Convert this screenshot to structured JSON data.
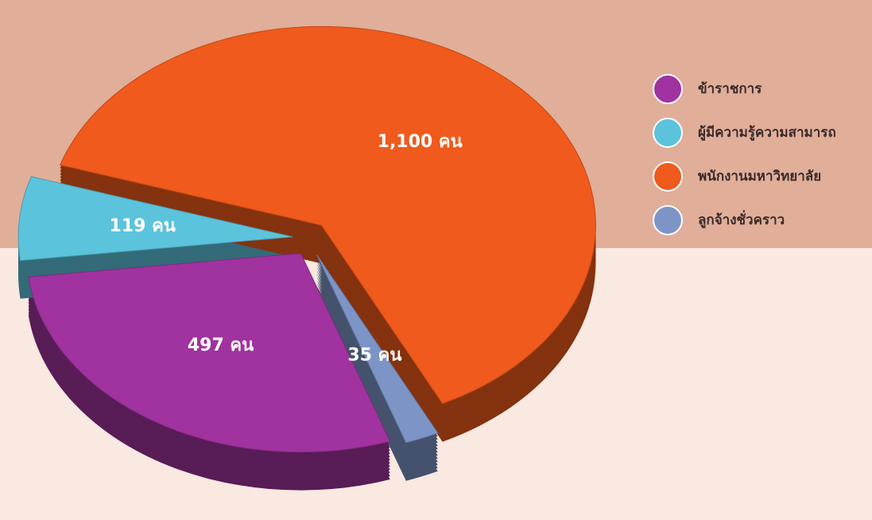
{
  "chart_data": {
    "type": "pie",
    "categories": [
      "ข้าราชการ",
      "ผู้มีความรู้ความสามารถ",
      "พนักงานมหาวิทยาลัย",
      "ลูกจ้างชั่วคราว"
    ],
    "values": [
      497,
      119,
      1100,
      35
    ],
    "value_labels": [
      "497 คน",
      "119 คน",
      "1,100 คน",
      "35 คน"
    ],
    "colors": [
      "#a0339f",
      "#5cc3dc",
      "#f05a1c",
      "#7d95c6"
    ],
    "legend": "right"
  }
}
